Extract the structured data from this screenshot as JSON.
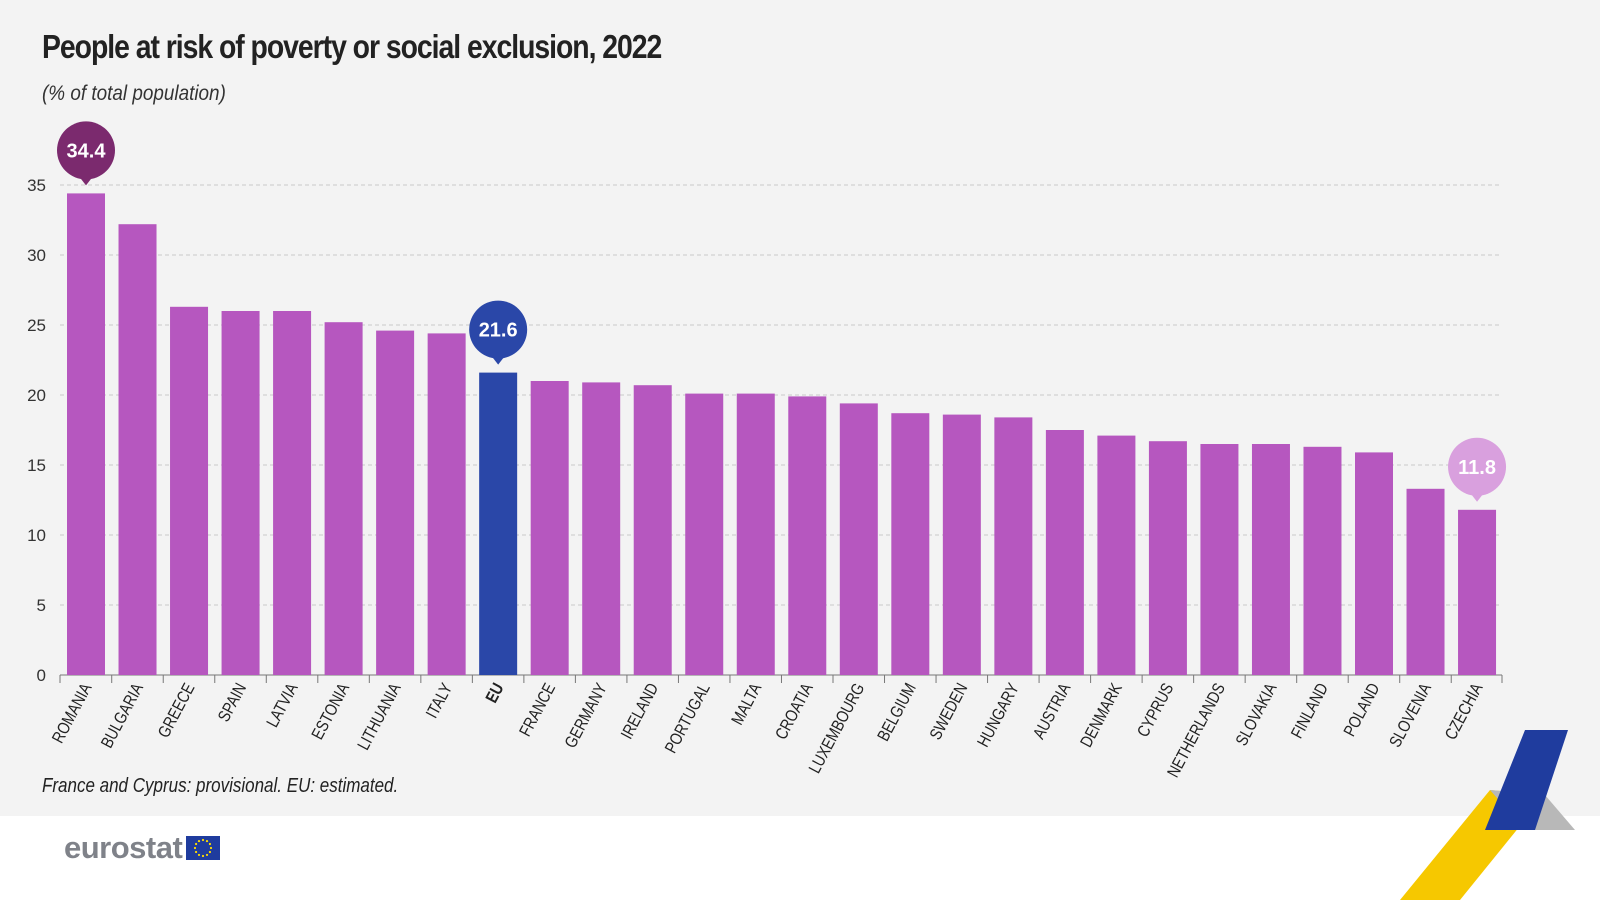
{
  "chart_data": {
    "type": "bar",
    "title": "People at risk of poverty or social exclusion, 2022",
    "subtitle": "(% of total population)",
    "note": "France and Cyprus: provisional. EU: estimated.",
    "categories": [
      "ROMANIA",
      "BULGARIA",
      "GREECE",
      "SPAIN",
      "LATVIA",
      "ESTONIA",
      "LITHUANIA",
      "ITALY",
      "EU",
      "FRANCE",
      "GERMANY",
      "IRELAND",
      "PORTUGAL",
      "MALTA",
      "CROATIA",
      "LUXEMBOURG",
      "BELGIUM",
      "SWEDEN",
      "HUNGARY",
      "AUSTRIA",
      "DENMARK",
      "CYPRUS",
      "NETHERLANDS",
      "SLOVAKIA",
      "FINLAND",
      "POLAND",
      "SLOVENIA",
      "CZECHIA"
    ],
    "values": [
      34.4,
      32.2,
      26.3,
      26.0,
      26.0,
      25.2,
      24.6,
      24.4,
      21.6,
      21.0,
      20.9,
      20.7,
      20.1,
      20.1,
      19.9,
      19.4,
      18.7,
      18.6,
      18.4,
      17.5,
      17.1,
      16.7,
      16.5,
      16.5,
      16.3,
      15.9,
      13.3,
      11.8
    ],
    "ylim": [
      0,
      35
    ],
    "yticks": [
      0,
      5,
      10,
      15,
      20,
      25,
      30,
      35
    ],
    "grid": true,
    "highlight_labels": [
      {
        "category": "ROMANIA",
        "label": "34.4",
        "color": "#7b2a6e"
      },
      {
        "category": "EU",
        "label": "21.6",
        "color": "#2a47a8"
      },
      {
        "category": "CZECHIA",
        "label": "11.8",
        "color": "#d9a0de"
      }
    ],
    "colors": {
      "bar": "#b657bf",
      "eu_bar": "#2a47a8"
    }
  },
  "branding": {
    "logo_text": "eurostat"
  }
}
